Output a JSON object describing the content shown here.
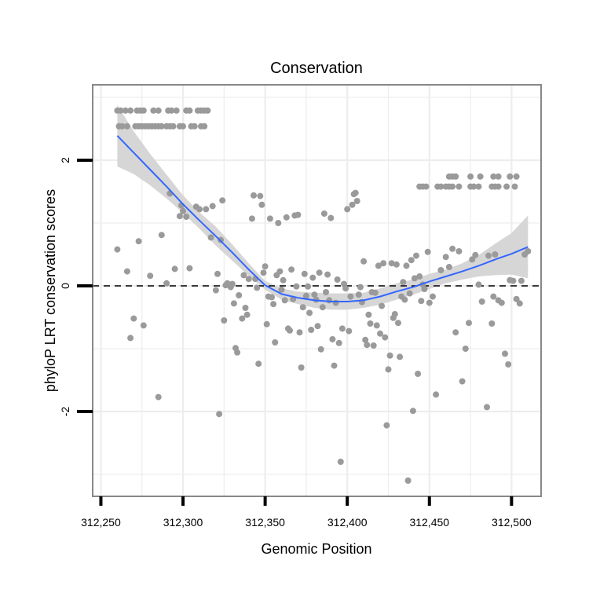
{
  "chart_data": {
    "type": "scatter",
    "title": "Conservation",
    "xlabel": "Genomic Position",
    "ylabel": "phyloP LRT conservation scores",
    "xlim": [
      312245,
      312518
    ],
    "ylim": [
      -3.35,
      3.2
    ],
    "x_ticks": [
      312250,
      312300,
      312350,
      312400,
      312450,
      312500
    ],
    "x_tick_labels": [
      "312,250",
      "312,300",
      "312,350",
      "312,400",
      "312,450",
      "312,500"
    ],
    "y_ticks": [
      -2,
      0,
      2
    ],
    "y_tick_labels": [
      "-2",
      "0",
      "2"
    ],
    "grid": true,
    "reference_line": {
      "y": 0,
      "style": "dashed"
    },
    "colors": {
      "points": "#9a9a9a",
      "trend": "#3366ff",
      "band": "#d6d6d6",
      "grid": "#ededed",
      "border": "#888888"
    },
    "points": [
      [
        312260,
        2.79
      ],
      [
        312262,
        2.79
      ],
      [
        312265,
        2.79
      ],
      [
        312268,
        2.79
      ],
      [
        312272,
        2.79
      ],
      [
        312274,
        2.79
      ],
      [
        312276,
        2.79
      ],
      [
        312282,
        2.79
      ],
      [
        312285,
        2.79
      ],
      [
        312291,
        2.79
      ],
      [
        312293,
        2.79
      ],
      [
        312296,
        2.79
      ],
      [
        312302,
        2.79
      ],
      [
        312304,
        2.79
      ],
      [
        312309,
        2.79
      ],
      [
        312311,
        2.79
      ],
      [
        312313,
        2.79
      ],
      [
        312315,
        2.79
      ],
      [
        312261,
        2.54
      ],
      [
        312263,
        2.54
      ],
      [
        312266,
        2.54
      ],
      [
        312271,
        2.54
      ],
      [
        312273,
        2.54
      ],
      [
        312275,
        2.54
      ],
      [
        312277,
        2.54
      ],
      [
        312279,
        2.54
      ],
      [
        312281,
        2.54
      ],
      [
        312283,
        2.54
      ],
      [
        312285,
        2.54
      ],
      [
        312287,
        2.54
      ],
      [
        312290,
        2.54
      ],
      [
        312292,
        2.54
      ],
      [
        312294,
        2.54
      ],
      [
        312298,
        2.54
      ],
      [
        312300,
        2.54
      ],
      [
        312305,
        2.54
      ],
      [
        312307,
        2.54
      ],
      [
        312311,
        2.54
      ],
      [
        312313,
        2.54
      ],
      [
        312444,
        1.58
      ],
      [
        312446,
        1.58
      ],
      [
        312448,
        1.58
      ],
      [
        312455,
        1.58
      ],
      [
        312457,
        1.58
      ],
      [
        312460,
        1.58
      ],
      [
        312462,
        1.58
      ],
      [
        312464,
        1.58
      ],
      [
        312468,
        1.58
      ],
      [
        312475,
        1.58
      ],
      [
        312477,
        1.58
      ],
      [
        312480,
        1.58
      ],
      [
        312488,
        1.58
      ],
      [
        312490,
        1.58
      ],
      [
        312492,
        1.58
      ],
      [
        312497,
        1.58
      ],
      [
        312502,
        1.58
      ],
      [
        312462,
        1.74
      ],
      [
        312464,
        1.74
      ],
      [
        312466,
        1.74
      ],
      [
        312475,
        1.74
      ],
      [
        312481,
        1.74
      ],
      [
        312489,
        1.74
      ],
      [
        312492,
        1.74
      ],
      [
        312499,
        1.74
      ],
      [
        312503,
        1.74
      ],
      [
        312260,
        0.58
      ],
      [
        312266,
        0.23
      ],
      [
        312268,
        -0.83
      ],
      [
        312270,
        -0.52
      ],
      [
        312273,
        0.71
      ],
      [
        312276,
        -0.63
      ],
      [
        312280,
        0.16
      ],
      [
        312285,
        -1.77
      ],
      [
        312287,
        0.81
      ],
      [
        312290,
        0.04
      ],
      [
        312292,
        1.47
      ],
      [
        312295,
        0.27
      ],
      [
        312298,
        1.11
      ],
      [
        312299,
        1.28
      ],
      [
        312300,
        1.19
      ],
      [
        312302,
        1.1
      ],
      [
        312304,
        0.28
      ],
      [
        312308,
        1.26
      ],
      [
        312310,
        1.22
      ],
      [
        312314,
        1.22
      ],
      [
        312317,
        0.77
      ],
      [
        312318,
        1.27
      ],
      [
        312320,
        -0.07
      ],
      [
        312321,
        0.19
      ],
      [
        312322,
        -2.04
      ],
      [
        312323,
        0.73
      ],
      [
        312324,
        1.36
      ],
      [
        312325,
        -0.55
      ],
      [
        312326,
        0.01
      ],
      [
        312327,
        0.04
      ],
      [
        312328,
        0.02
      ],
      [
        312329,
        -0.02
      ],
      [
        312330,
        0.03
      ],
      [
        312331,
        -0.28
      ],
      [
        312332,
        -0.99
      ],
      [
        312333,
        -1.06
      ],
      [
        312334,
        -0.15
      ],
      [
        312336,
        -0.52
      ],
      [
        312337,
        0.17
      ],
      [
        312338,
        -0.35
      ],
      [
        312339,
        -0.46
      ],
      [
        312340,
        0.11
      ],
      [
        312342,
        1.07
      ],
      [
        312343,
        1.44
      ],
      [
        312344,
        0.11
      ],
      [
        312345,
        -0.03
      ],
      [
        312346,
        -1.24
      ],
      [
        312347,
        1.43
      ],
      [
        312348,
        1.29
      ],
      [
        312349,
        0.21
      ],
      [
        312350,
        0.31
      ],
      [
        312351,
        -0.61
      ],
      [
        312352,
        -0.17
      ],
      [
        312353,
        1.07
      ],
      [
        312354,
        -0.18
      ],
      [
        312355,
        -0.29
      ],
      [
        312356,
        -0.9
      ],
      [
        312357,
        0.17
      ],
      [
        312358,
        1.0
      ],
      [
        312359,
        0.23
      ],
      [
        312360,
        -0.06
      ],
      [
        312361,
        0.09
      ],
      [
        312362,
        -0.23
      ],
      [
        312363,
        1.09
      ],
      [
        312364,
        -0.68
      ],
      [
        312365,
        -0.71
      ],
      [
        312366,
        0.26
      ],
      [
        312367,
        -0.21
      ],
      [
        312368,
        1.12
      ],
      [
        312369,
        -0.01
      ],
      [
        312370,
        1.13
      ],
      [
        312371,
        -0.74
      ],
      [
        312372,
        -1.3
      ],
      [
        312373,
        -0.34
      ],
      [
        312374,
        0.19
      ],
      [
        312375,
        -0.16
      ],
      [
        312376,
        -0.01
      ],
      [
        312377,
        -0.43
      ],
      [
        312378,
        -0.7
      ],
      [
        312379,
        0.13
      ],
      [
        312380,
        -0.14
      ],
      [
        312381,
        -0.22
      ],
      [
        312382,
        -0.64
      ],
      [
        312383,
        0.21
      ],
      [
        312384,
        -1.01
      ],
      [
        312385,
        -0.34
      ],
      [
        312386,
        1.15
      ],
      [
        312387,
        -0.1
      ],
      [
        312388,
        0.18
      ],
      [
        312389,
        -0.23
      ],
      [
        312390,
        1.08
      ],
      [
        312391,
        -0.85
      ],
      [
        312392,
        -1.27
      ],
      [
        312393,
        -0.27
      ],
      [
        312394,
        0.1
      ],
      [
        312395,
        -0.91
      ],
      [
        312396,
        -2.8
      ],
      [
        312397,
        -0.68
      ],
      [
        312398,
        0.03
      ],
      [
        312399,
        -0.04
      ],
      [
        312400,
        1.22
      ],
      [
        312401,
        -0.72
      ],
      [
        312402,
        -0.17
      ],
      [
        312403,
        1.29
      ],
      [
        312404,
        1.46
      ],
      [
        312405,
        1.48
      ],
      [
        312406,
        1.35
      ],
      [
        312407,
        -0.14
      ],
      [
        312408,
        -0.02
      ],
      [
        312409,
        -0.26
      ],
      [
        312410,
        0.39
      ],
      [
        312411,
        -0.86
      ],
      [
        312412,
        -0.94
      ],
      [
        312413,
        -0.46
      ],
      [
        312414,
        -0.6
      ],
      [
        312415,
        -0.1
      ],
      [
        312416,
        -0.95
      ],
      [
        312417,
        -0.11
      ],
      [
        312418,
        -0.63
      ],
      [
        312419,
        0.32
      ],
      [
        312420,
        -0.76
      ],
      [
        312421,
        -0.32
      ],
      [
        312422,
        0.36
      ],
      [
        312423,
        -0.82
      ],
      [
        312424,
        -2.22
      ],
      [
        312425,
        -1.33
      ],
      [
        312426,
        -1.11
      ],
      [
        312427,
        0.36
      ],
      [
        312428,
        -0.51
      ],
      [
        312429,
        -0.45
      ],
      [
        312430,
        0.34
      ],
      [
        312431,
        -0.59
      ],
      [
        312432,
        -1.13
      ],
      [
        312433,
        -0.17
      ],
      [
        312434,
        0.06
      ],
      [
        312435,
        -0.22
      ],
      [
        312436,
        0.32
      ],
      [
        312437,
        -3.1
      ],
      [
        312438,
        -0.12
      ],
      [
        312439,
        0.41
      ],
      [
        312440,
        -1.99
      ],
      [
        312441,
        0.12
      ],
      [
        312442,
        0.48
      ],
      [
        312443,
        -1.4
      ],
      [
        312444,
        0.15
      ],
      [
        312445,
        -0.24
      ],
      [
        312446,
        0.02
      ],
      [
        312447,
        -0.05
      ],
      [
        312449,
        0.54
      ],
      [
        312450,
        -0.27
      ],
      [
        312452,
        -0.17
      ],
      [
        312454,
        -1.73
      ],
      [
        312457,
        0.25
      ],
      [
        312460,
        0.46
      ],
      [
        312462,
        0.3
      ],
      [
        312464,
        0.59
      ],
      [
        312466,
        -0.74
      ],
      [
        312468,
        0.55
      ],
      [
        312470,
        -1.52
      ],
      [
        312472,
        -1.0
      ],
      [
        312474,
        -0.59
      ],
      [
        312476,
        0.42
      ],
      [
        312478,
        0.49
      ],
      [
        312480,
        0.02
      ],
      [
        312482,
        -0.25
      ],
      [
        312485,
        -1.93
      ],
      [
        312486,
        0.48
      ],
      [
        312488,
        -0.6
      ],
      [
        312489,
        -0.17
      ],
      [
        312490,
        0.5
      ],
      [
        312492,
        -0.23
      ],
      [
        312494,
        -0.27
      ],
      [
        312496,
        -1.08
      ],
      [
        312498,
        -1.25
      ],
      [
        312499,
        0.09
      ],
      [
        312501,
        0.08
      ],
      [
        312503,
        -0.21
      ],
      [
        312505,
        -0.28
      ],
      [
        312506,
        0.08
      ],
      [
        312508,
        0.5
      ],
      [
        312510,
        0.55
      ]
    ],
    "trend": {
      "x": [
        312260,
        312270,
        312280,
        312290,
        312300,
        312310,
        312320,
        312330,
        312340,
        312350,
        312360,
        312370,
        312380,
        312390,
        312400,
        312410,
        312420,
        312430,
        312440,
        312450,
        312460,
        312470,
        312480,
        312490,
        312500,
        312510
      ],
      "y": [
        2.39,
        2.12,
        1.85,
        1.58,
        1.3,
        1.04,
        0.79,
        0.53,
        0.26,
        0.01,
        -0.13,
        -0.19,
        -0.23,
        -0.25,
        -0.25,
        -0.23,
        -0.17,
        -0.09,
        -0.02,
        0.07,
        0.15,
        0.23,
        0.32,
        0.42,
        0.51,
        0.62
      ],
      "lower": [
        1.9,
        1.78,
        1.6,
        1.39,
        1.16,
        0.91,
        0.64,
        0.4,
        0.16,
        -0.06,
        -0.22,
        -0.29,
        -0.35,
        -0.38,
        -0.38,
        -0.35,
        -0.3,
        -0.22,
        -0.14,
        -0.05,
        0.04,
        0.1,
        0.15,
        0.17,
        0.18,
        0.12
      ],
      "upper": [
        2.88,
        2.46,
        2.1,
        1.77,
        1.44,
        1.17,
        0.94,
        0.66,
        0.36,
        0.08,
        -0.04,
        -0.09,
        -0.11,
        -0.12,
        -0.12,
        -0.11,
        -0.04,
        0.04,
        0.1,
        0.19,
        0.26,
        0.36,
        0.49,
        0.67,
        0.84,
        1.12
      ]
    }
  }
}
